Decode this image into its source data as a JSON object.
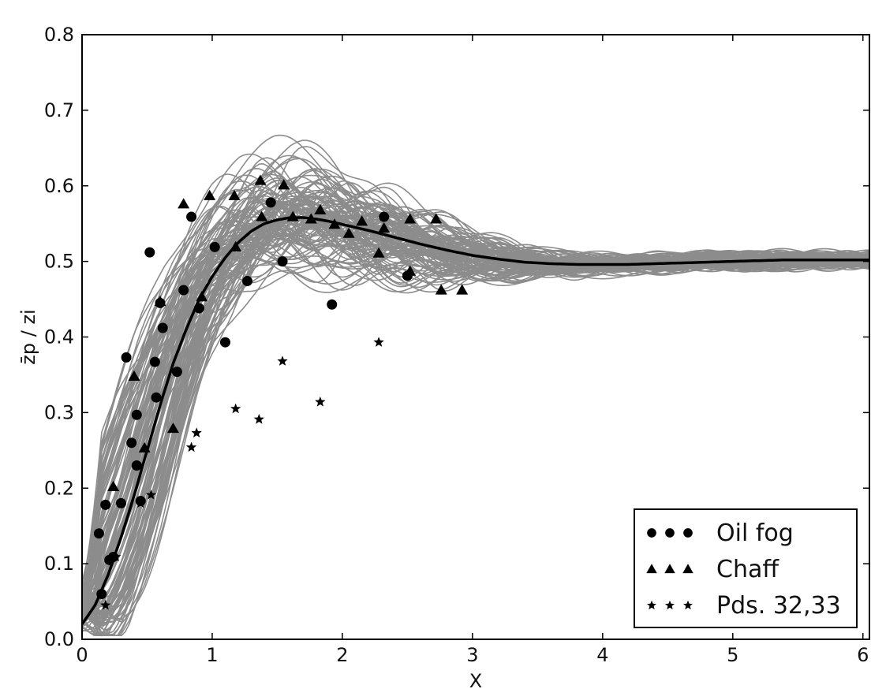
{
  "chart_data": {
    "type": "scatter",
    "title": "",
    "xlabel": "X",
    "ylabel": "z̄p / zi",
    "xlim": [
      0,
      6.05
    ],
    "ylim": [
      0,
      0.8
    ],
    "xticks": [
      "0",
      "1",
      "2",
      "3",
      "4",
      "5",
      "6"
    ],
    "yticks": [
      "0.0",
      "0.1",
      "0.2",
      "0.3",
      "0.4",
      "0.5",
      "0.6",
      "0.7",
      "0.8"
    ],
    "grid": false,
    "legend_position": "bottom-right",
    "colors": {
      "ensemble": "#8c8c8c",
      "mean": "#000000",
      "markers": "#000000"
    },
    "mean_curve": {
      "x": [
        0,
        0.1,
        0.2,
        0.3,
        0.4,
        0.5,
        0.6,
        0.7,
        0.8,
        0.9,
        1.0,
        1.1,
        1.2,
        1.3,
        1.4,
        1.5,
        1.6,
        1.7,
        1.8,
        1.9,
        2.0,
        2.2,
        2.4,
        2.6,
        2.8,
        3.0,
        3.2,
        3.4,
        3.6,
        3.8,
        4.0,
        4.2,
        4.4,
        4.6,
        4.8,
        5.0,
        5.2,
        5.4,
        5.6,
        5.8,
        6.05
      ],
      "y": [
        0.02,
        0.045,
        0.085,
        0.135,
        0.19,
        0.25,
        0.31,
        0.365,
        0.41,
        0.45,
        0.48,
        0.505,
        0.525,
        0.54,
        0.55,
        0.555,
        0.558,
        0.558,
        0.556,
        0.553,
        0.549,
        0.541,
        0.532,
        0.523,
        0.515,
        0.508,
        0.503,
        0.499,
        0.497,
        0.496,
        0.496,
        0.496,
        0.497,
        0.498,
        0.499,
        0.5,
        0.501,
        0.502,
        0.502,
        0.502,
        0.502
      ]
    },
    "ensemble": {
      "count": 120,
      "description_source": "gray realizations"
    },
    "series": [
      {
        "name": "Oil fog",
        "marker": "circle",
        "points": [
          [
            0.13,
            0.14
          ],
          [
            0.15,
            0.06
          ],
          [
            0.18,
            0.178
          ],
          [
            0.21,
            0.105
          ],
          [
            0.24,
            0.109
          ],
          [
            0.3,
            0.18
          ],
          [
            0.34,
            0.373
          ],
          [
            0.38,
            0.26
          ],
          [
            0.42,
            0.297
          ],
          [
            0.42,
            0.23
          ],
          [
            0.45,
            0.183
          ],
          [
            0.52,
            0.512
          ],
          [
            0.56,
            0.367
          ],
          [
            0.57,
            0.32
          ],
          [
            0.6,
            0.445
          ],
          [
            0.62,
            0.412
          ],
          [
            0.73,
            0.354
          ],
          [
            0.78,
            0.462
          ],
          [
            0.84,
            0.559
          ],
          [
            0.9,
            0.438
          ],
          [
            1.02,
            0.519
          ],
          [
            1.1,
            0.393
          ],
          [
            1.27,
            0.474
          ],
          [
            1.45,
            0.578
          ],
          [
            1.54,
            0.5
          ],
          [
            1.92,
            0.443
          ],
          [
            2.32,
            0.559
          ],
          [
            2.5,
            0.481
          ]
        ]
      },
      {
        "name": "Chaff",
        "marker": "triangle",
        "points": [
          [
            0.24,
            0.202
          ],
          [
            0.4,
            0.348
          ],
          [
            0.48,
            0.253
          ],
          [
            0.6,
            0.447
          ],
          [
            0.7,
            0.279
          ],
          [
            0.78,
            0.576
          ],
          [
            0.92,
            0.453
          ],
          [
            0.98,
            0.587
          ],
          [
            1.17,
            0.587
          ],
          [
            1.18,
            0.519
          ],
          [
            1.37,
            0.607
          ],
          [
            1.38,
            0.559
          ],
          [
            1.55,
            0.601
          ],
          [
            1.62,
            0.559
          ],
          [
            1.76,
            0.556
          ],
          [
            1.83,
            0.568
          ],
          [
            1.94,
            0.549
          ],
          [
            2.05,
            0.537
          ],
          [
            2.15,
            0.553
          ],
          [
            2.28,
            0.511
          ],
          [
            2.32,
            0.544
          ],
          [
            2.52,
            0.487
          ],
          [
            2.52,
            0.556
          ],
          [
            2.72,
            0.556
          ],
          [
            2.76,
            0.462
          ],
          [
            2.92,
            0.462
          ]
        ]
      },
      {
        "name": "Pds. 32,33",
        "marker": "star",
        "points": [
          [
            0.18,
            0.045
          ],
          [
            0.26,
            0.109
          ],
          [
            0.45,
            0.18
          ],
          [
            0.53,
            0.191
          ],
          [
            0.84,
            0.254
          ],
          [
            0.88,
            0.273
          ],
          [
            1.18,
            0.305
          ],
          [
            1.36,
            0.291
          ],
          [
            1.54,
            0.368
          ],
          [
            1.83,
            0.314
          ],
          [
            2.28,
            0.393
          ]
        ]
      }
    ]
  }
}
